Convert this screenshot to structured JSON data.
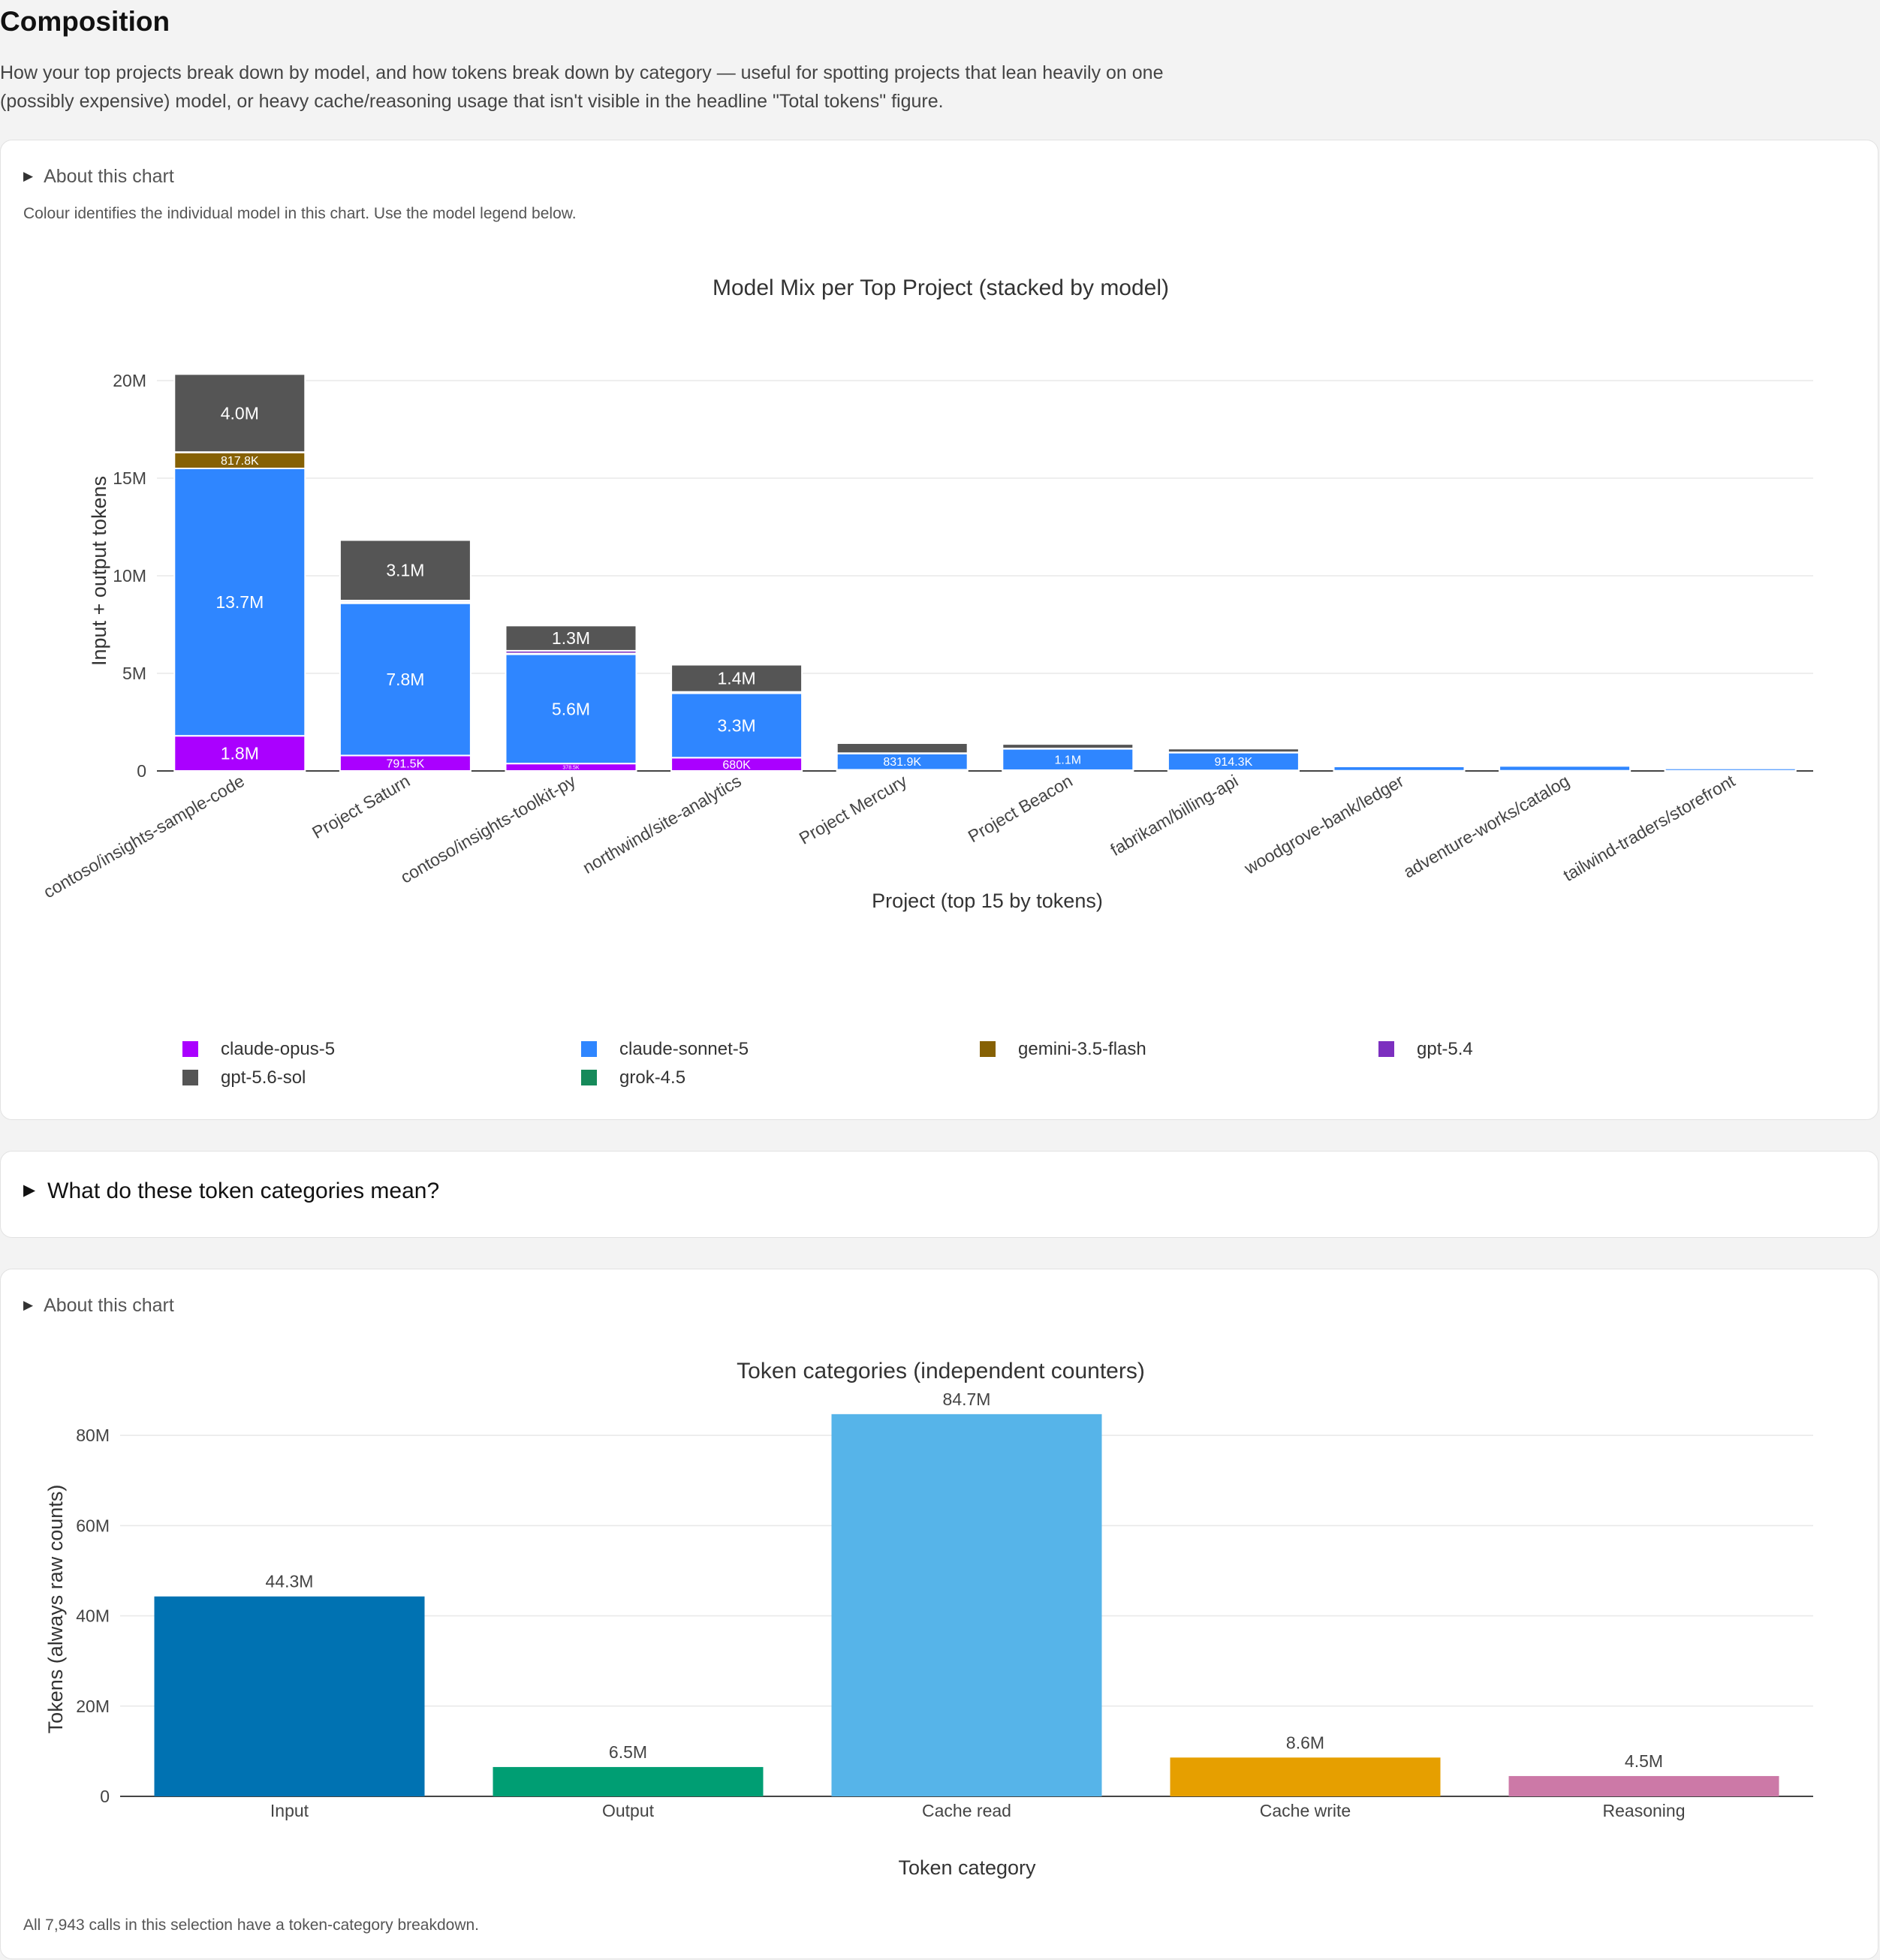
{
  "page": {
    "title": "Composition",
    "description": "How your top projects break down by model, and how tokens break down by category — useful for spotting projects that lean heavily on one (possibly expensive) model, or heavy cache/reasoning usage that isn't visible in the headline \"Total tokens\" figure."
  },
  "model_mix_card": {
    "about_label": "About this chart",
    "note": "Colour identifies the individual model in this chart. Use the model legend below."
  },
  "categories_help": {
    "label": "What do these token categories mean?"
  },
  "token_categories_card": {
    "about_label": "About this chart",
    "footer": "All 7,943 calls in this selection have a token-category breakdown."
  },
  "models": [
    {
      "name": "claude-opus-5",
      "color": "#aa00ff"
    },
    {
      "name": "claude-sonnet-5",
      "color": "#2f86ff"
    },
    {
      "name": "gemini-3.5-flash",
      "color": "#866104"
    },
    {
      "name": "gpt-5.4",
      "color": "#7c2fbf"
    },
    {
      "name": "gpt-5.6-sol",
      "color": "#555555"
    },
    {
      "name": "grok-4.5",
      "color": "#168a5a"
    }
  ],
  "chart_data": [
    {
      "type": "bar",
      "stacked": true,
      "title": "Model Mix per Top Project (stacked by model)",
      "xlabel": "Project (top 15 by tokens)",
      "ylabel": "Input + output tokens",
      "ylim": [
        0,
        20500000
      ],
      "yticks": [
        {
          "value": 0,
          "label": "0"
        },
        {
          "value": 5000000,
          "label": "5M"
        },
        {
          "value": 10000000,
          "label": "10M"
        },
        {
          "value": 15000000,
          "label": "15M"
        },
        {
          "value": 20000000,
          "label": "20M"
        }
      ],
      "grid": true,
      "legend_position": "bottom",
      "categories": [
        "contoso/insights-sample-code",
        "Project Saturn",
        "contoso/insights-toolkit-py",
        "northwind/site-analytics",
        "Project Mercury",
        "Project Beacon",
        "fabrikam/billing-api",
        "woodgrove-bank/ledger",
        "adventure-works/catalog",
        "tailwind-traders/storefront"
      ],
      "series": [
        {
          "name": "claude-opus-5",
          "color": "#aa00ff",
          "values": [
            1800000,
            791500,
            378500,
            680000,
            60000,
            40000,
            30000,
            10000,
            10000,
            10000
          ],
          "labels": [
            "1.8M",
            "791.5K",
            "378.5K",
            "680K",
            "",
            "",
            "",
            "",
            "",
            ""
          ]
        },
        {
          "name": "claude-sonnet-5",
          "color": "#2f86ff",
          "values": [
            13700000,
            7800000,
            5600000,
            3300000,
            831900,
            1100000,
            914300,
            220000,
            250000,
            120000
          ],
          "labels": [
            "13.7M",
            "7.8M",
            "5.6M",
            "3.3M",
            "831.9K",
            "1.1M",
            "914.3K",
            "",
            "",
            ""
          ]
        },
        {
          "name": "gemini-3.5-flash",
          "color": "#866104",
          "values": [
            817800,
            60000,
            40000,
            20000,
            0,
            0,
            0,
            0,
            0,
            0
          ],
          "labels": [
            "817.8K",
            "",
            "",
            "",
            "",
            "",
            "",
            "",
            "",
            ""
          ]
        },
        {
          "name": "gpt-5.4",
          "color": "#7c2fbf",
          "values": [
            20000,
            80000,
            140000,
            50000,
            20000,
            10000,
            10000,
            0,
            0,
            0
          ],
          "labels": [
            "",
            "",
            "",
            "",
            "",
            "",
            "",
            "",
            "",
            ""
          ]
        },
        {
          "name": "gpt-5.6-sol",
          "color": "#555555",
          "values": [
            4000000,
            3100000,
            1300000,
            1400000,
            520000,
            230000,
            190000,
            30000,
            30000,
            20000
          ],
          "labels": [
            "4.0M",
            "3.1M",
            "1.3M",
            "1.4M",
            "",
            "",
            "",
            "",
            "",
            ""
          ]
        },
        {
          "name": "grok-4.5",
          "color": "#168a5a",
          "values": [
            20000,
            20000,
            10000,
            10000,
            10000,
            0,
            0,
            0,
            0,
            0
          ],
          "labels": [
            "",
            "",
            "",
            "",
            "",
            "",
            "",
            "",
            "",
            ""
          ]
        }
      ]
    },
    {
      "type": "bar",
      "title": "Token categories (independent counters)",
      "xlabel": "Token category",
      "ylabel": "Tokens (always raw counts)",
      "ylim": [
        0,
        88000000
      ],
      "yticks": [
        {
          "value": 0,
          "label": "0"
        },
        {
          "value": 20000000,
          "label": "20M"
        },
        {
          "value": 40000000,
          "label": "40M"
        },
        {
          "value": 60000000,
          "label": "60M"
        },
        {
          "value": 80000000,
          "label": "80M"
        }
      ],
      "grid": true,
      "categories": [
        "Input",
        "Output",
        "Cache read",
        "Cache write",
        "Reasoning"
      ],
      "values": [
        44300000,
        6500000,
        84700000,
        8600000,
        4500000
      ],
      "labels": [
        "44.3M",
        "6.5M",
        "84.7M",
        "8.6M",
        "4.5M"
      ],
      "colors": [
        "#0072b2",
        "#009e73",
        "#56b4e9",
        "#e69f00",
        "#cc79a7"
      ]
    }
  ]
}
